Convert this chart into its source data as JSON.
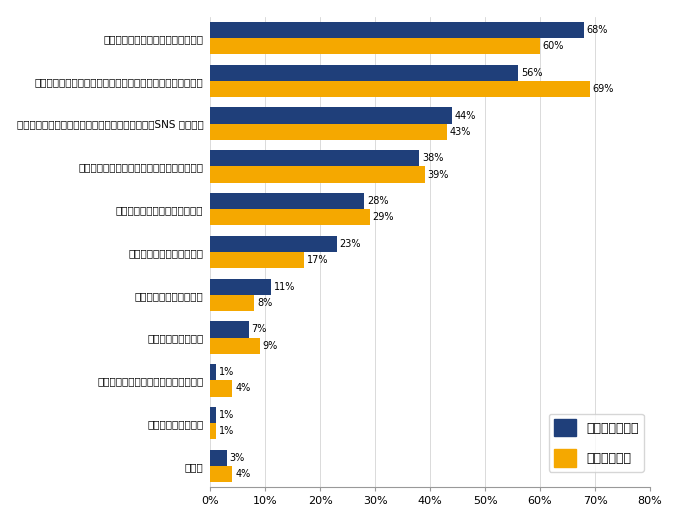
{
  "categories": [
    "人材紹介会社に登録・相談している",
    "転職サイト（企業へ直接応募できるサイト）に登録している",
    "インターネットを利用した情報収集をしている（SNS を含む）",
    "今の仕事でしっかり経験を積む・実績を作る",
    "専門性を高める勉強をしている",
    "友人・知人に相談している",
    "資格取得を目指している",
    "家族に相談している",
    "転職フェア・イベントに参加している",
    "上司に相談している",
    "その他"
  ],
  "foreign_values": [
    68,
    56,
    44,
    38,
    28,
    23,
    11,
    7,
    1,
    1,
    3
  ],
  "domestic_values": [
    60,
    69,
    43,
    39,
    29,
    17,
    8,
    9,
    4,
    1,
    4
  ],
  "foreign_color": "#1f3f7a",
  "domestic_color": "#f5a800",
  "foreign_label": "外資系企業社員",
  "domestic_label": "日系企業社員",
  "xlim": [
    0,
    80
  ],
  "xticks": [
    0,
    10,
    20,
    30,
    40,
    50,
    60,
    70,
    80
  ],
  "xtick_labels": [
    "0%",
    "10%",
    "20%",
    "30%",
    "40%",
    "50%",
    "60%",
    "70%",
    "80%"
  ],
  "bar_height": 0.38,
  "label_fontsize": 7.5,
  "tick_fontsize": 8.0,
  "legend_fontsize": 9,
  "value_fontsize": 7.0
}
